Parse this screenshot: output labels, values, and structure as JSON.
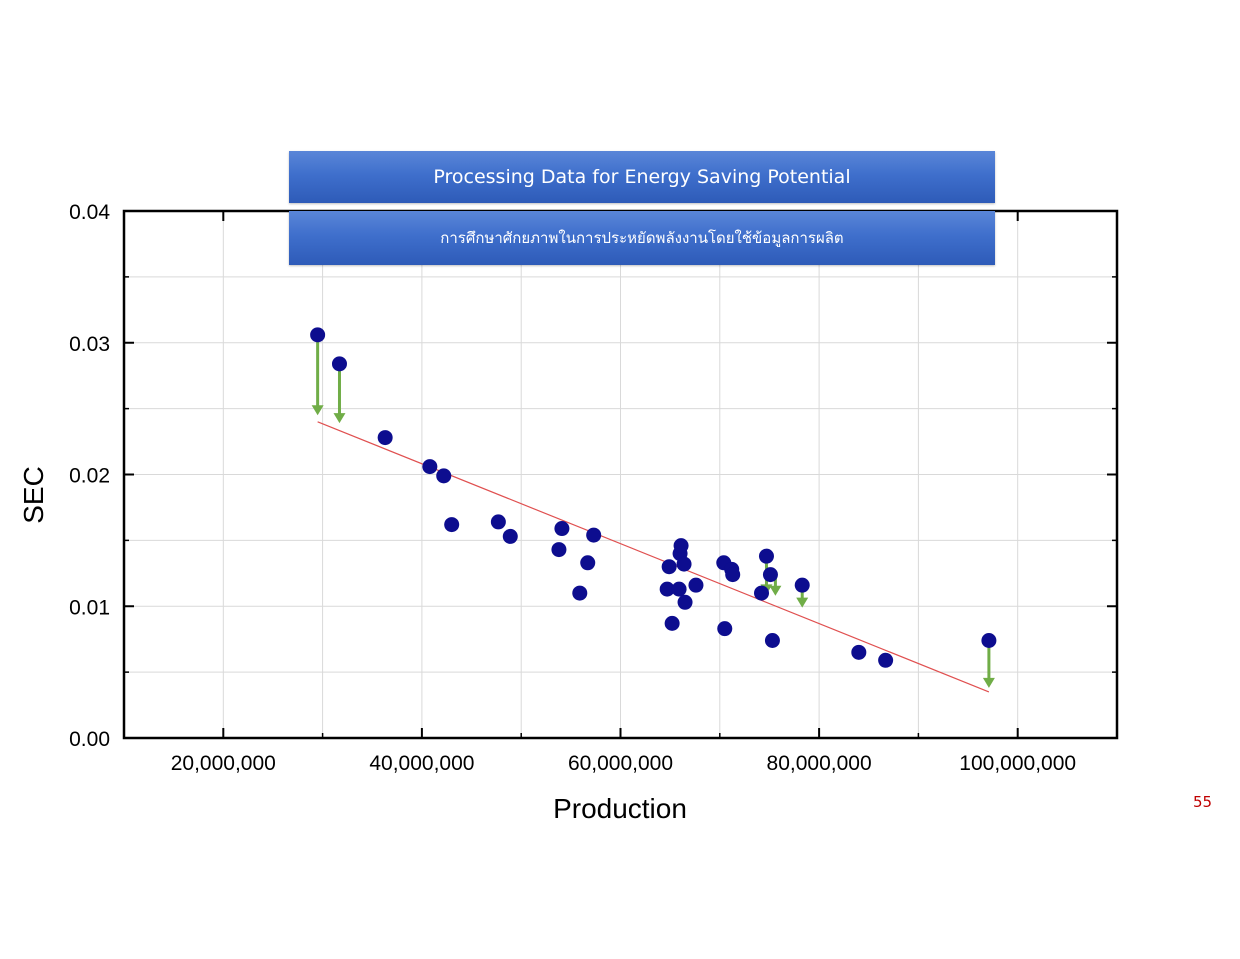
{
  "slide": {
    "title": "Processing Data for Energy Saving Potential",
    "subtitle": "การศึกษาศักยภาพในการประหยัดพลังงานโดยใช้ข้อมูลการผลิต",
    "page_number": "55"
  },
  "chart_data": {
    "type": "scatter",
    "title": "",
    "xlabel": "Production",
    "ylabel": "SEC",
    "xlim": [
      10000000,
      110000000
    ],
    "ylim": [
      0,
      0.04
    ],
    "x_ticks": [
      20000000,
      40000000,
      60000000,
      80000000,
      100000000
    ],
    "x_tick_labels": [
      "20,000,000",
      "40,000,000",
      "60,000,000",
      "80,000,000",
      "100,000,000"
    ],
    "y_ticks": [
      0,
      0.01,
      0.02,
      0.03,
      0.04
    ],
    "y_tick_labels": [
      "0.00",
      "0.01",
      "0.02",
      "0.03",
      "0.04"
    ],
    "grid": true,
    "point_color": "#0d0d8f",
    "trend_color": "#e05050",
    "arrow_color": "#70ad47",
    "points": [
      [
        29500000,
        0.0306
      ],
      [
        31700000,
        0.0284
      ],
      [
        36300000,
        0.0228
      ],
      [
        40800000,
        0.0206
      ],
      [
        42200000,
        0.0199
      ],
      [
        43000000,
        0.0162
      ],
      [
        47700000,
        0.0164
      ],
      [
        48900000,
        0.0153
      ],
      [
        53800000,
        0.0143
      ],
      [
        54100000,
        0.0159
      ],
      [
        55900000,
        0.011
      ],
      [
        56700000,
        0.0133
      ],
      [
        57300000,
        0.0154
      ],
      [
        64700000,
        0.0113
      ],
      [
        64900000,
        0.013
      ],
      [
        65200000,
        0.0087
      ],
      [
        65900000,
        0.0113
      ],
      [
        66000000,
        0.014
      ],
      [
        66100000,
        0.0146
      ],
      [
        66400000,
        0.0132
      ],
      [
        66500000,
        0.0103
      ],
      [
        67600000,
        0.0116
      ],
      [
        70400000,
        0.0133
      ],
      [
        70500000,
        0.0083
      ],
      [
        71200000,
        0.0128
      ],
      [
        71300000,
        0.0124
      ],
      [
        74200000,
        0.011
      ],
      [
        74700000,
        0.0138
      ],
      [
        75100000,
        0.0124
      ],
      [
        75300000,
        0.0074
      ],
      [
        78300000,
        0.0116
      ],
      [
        84000000,
        0.0065
      ],
      [
        86700000,
        0.0059
      ],
      [
        97100000,
        0.0074
      ]
    ],
    "trendline": [
      [
        29500000,
        0.024
      ],
      [
        97100000,
        0.0035
      ]
    ],
    "arrows": [
      [
        29500000,
        0.0306,
        0.0245
      ],
      [
        31700000,
        0.0284,
        0.0239
      ],
      [
        74700000,
        0.0134,
        0.0109
      ],
      [
        75600000,
        0.0124,
        0.0108
      ],
      [
        78300000,
        0.0112,
        0.0099
      ],
      [
        97100000,
        0.0071,
        0.0038
      ]
    ]
  }
}
